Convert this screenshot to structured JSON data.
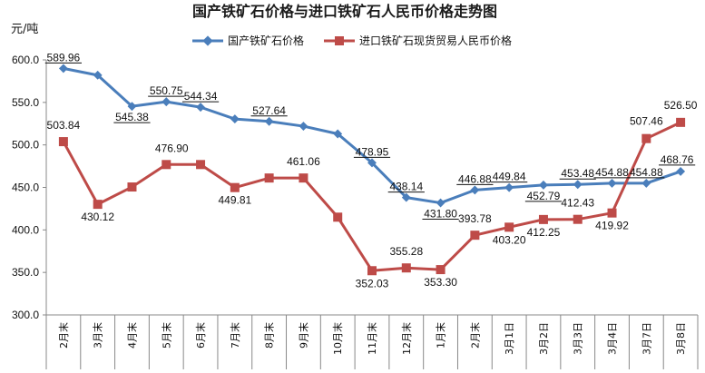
{
  "chart_data": {
    "type": "line",
    "title": "国产铁矿石价格与进口铁矿石人民币价格走势图",
    "ylabel": "元/吨",
    "ylim": [
      300,
      600
    ],
    "yticks": [
      "300.0",
      "350.0",
      "400.0",
      "450.0",
      "500.0",
      "550.0",
      "600.0"
    ],
    "grid": false,
    "legend_position": "top",
    "categories": [
      "2月末",
      "3月末",
      "4月末",
      "5月末",
      "6月末",
      "7月末",
      "8月末",
      "9月末",
      "10月末",
      "11月末",
      "12月末",
      "1月末",
      "2月末",
      "3月1日",
      "3月2日",
      "3月3日",
      "3月4日",
      "3月7日",
      "3月8日"
    ],
    "series": [
      {
        "name": "国产铁矿石价格",
        "color": "#4a7ebb",
        "marker": "diamond",
        "values": [
          589.96,
          582.0,
          545.38,
          550.75,
          544.34,
          530.5,
          527.64,
          522.0,
          513.0,
          478.95,
          438.14,
          431.8,
          446.88,
          449.84,
          452.79,
          453.48,
          454.88,
          454.88,
          468.76
        ],
        "labels": [
          "589.96",
          "",
          "545.38",
          "550.75",
          "544.34",
          "",
          "527.64",
          "",
          "",
          "478.95",
          "438.14",
          "431.80",
          "446.88",
          "449.84",
          "452.79",
          "453.48",
          "454.88",
          "454.88",
          "468.76"
        ]
      },
      {
        "name": "进口铁矿石现货贸易人民币价格",
        "color": "#be4b48",
        "marker": "square",
        "values": [
          503.84,
          430.12,
          450.5,
          476.9,
          476.9,
          449.81,
          461.06,
          461.06,
          415.0,
          352.03,
          355.28,
          353.3,
          393.78,
          403.2,
          412.25,
          412.43,
          419.92,
          507.46,
          526.5
        ],
        "labels": [
          "503.84",
          "430.12",
          "",
          "476.90",
          "",
          "449.81",
          "",
          "461.06",
          "",
          "352.03",
          "355.28",
          "353.30",
          "393.78",
          "403.20",
          "412.25",
          "412.43",
          "419.92",
          "507.46",
          "526.50"
        ]
      }
    ]
  }
}
